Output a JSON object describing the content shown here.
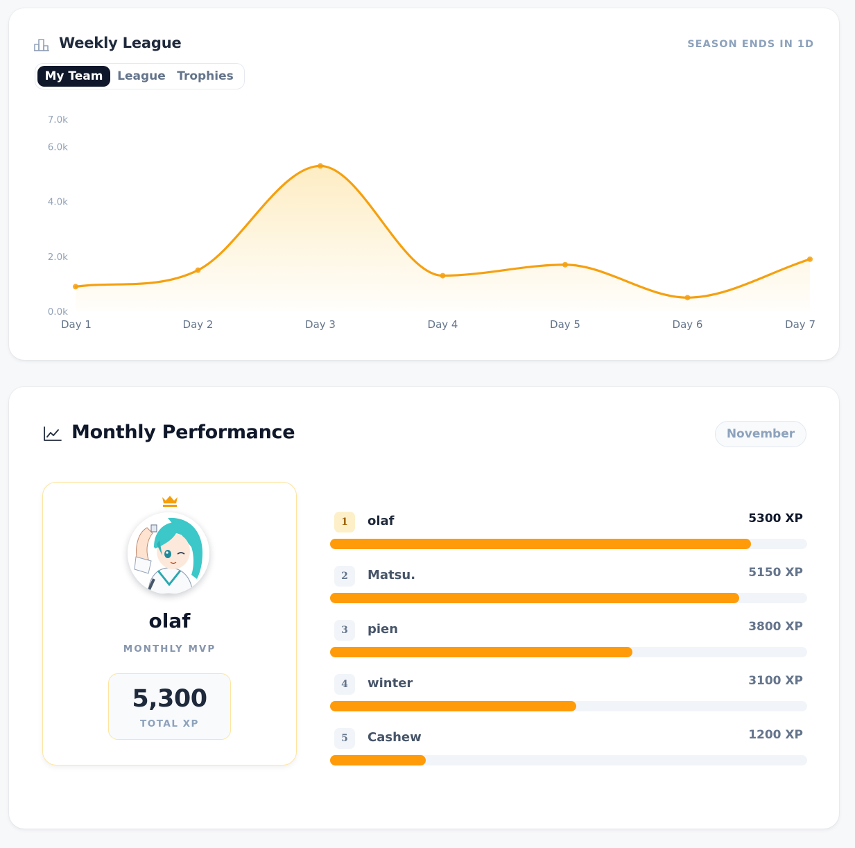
{
  "weekly_league": {
    "title": "Weekly League",
    "icon": "podium-icon",
    "season_text": "SEASON ENDS IN 1D",
    "tabs": [
      {
        "label": "My Team",
        "active": true
      },
      {
        "label": "League",
        "active": false
      },
      {
        "label": "Trophies",
        "active": false
      }
    ]
  },
  "chart_data": {
    "type": "area",
    "title": "",
    "xlabel": "",
    "ylabel": "",
    "categories": [
      "Day 1",
      "Day 2",
      "Day 3",
      "Day 4",
      "Day 5",
      "Day 6",
      "Day 7"
    ],
    "series": [
      {
        "values": [
          900,
          1500,
          5300,
          1300,
          1700,
          500,
          1900
        ]
      }
    ],
    "y_ticks": [
      "0.0k",
      "2.0k",
      "4.0k",
      "6.0k",
      "7.0k"
    ],
    "y_tick_values": [
      0,
      2000,
      4000,
      6000,
      7000
    ],
    "ylim": [
      0,
      6900
    ],
    "grid": false,
    "line_color": "#f5a00f",
    "fill_color": "#fde7b0"
  },
  "monthly": {
    "title": "Monthly Performance",
    "icon": "line-chart-icon",
    "month": "November",
    "mvp": {
      "name": "olaf",
      "label": "MONTHLY MVP",
      "xp_value": "5,300",
      "xp_label": "TOTAL XP",
      "crown_icon": "crown-icon",
      "avatar": "anime-avatar"
    },
    "leaderboard": [
      {
        "rank": "1",
        "name": "olaf",
        "xp": "5300 XP",
        "fraction": 0.882
      },
      {
        "rank": "2",
        "name": "Matsu.",
        "xp": "5150 XP",
        "fraction": 0.857
      },
      {
        "rank": "3",
        "name": "pien",
        "xp": "3800 XP",
        "fraction": 0.633
      },
      {
        "rank": "4",
        "name": "winter",
        "xp": "3100 XP",
        "fraction": 0.516
      },
      {
        "rank": "5",
        "name": "Cashew",
        "xp": "1200 XP",
        "fraction": 0.2
      }
    ],
    "bar_color": "#ff9b08"
  }
}
